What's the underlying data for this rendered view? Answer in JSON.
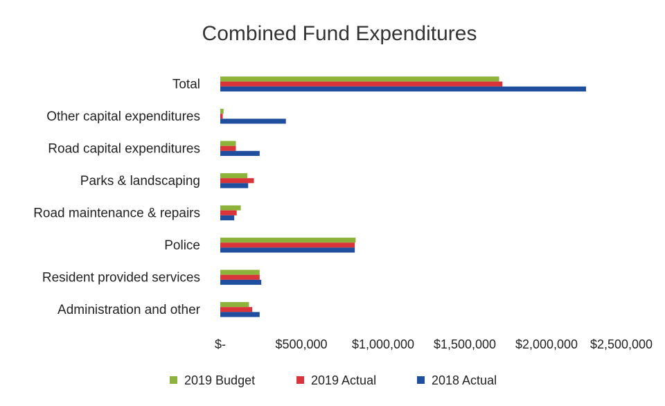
{
  "chart_data": {
    "type": "bar",
    "orientation": "horizontal",
    "title": "Combined Fund Expenditures",
    "xlabel": "",
    "ylabel": "",
    "categories": [
      "Total",
      "Other capital expenditures",
      "Road capital expenditures",
      "Parks & landscaping",
      "Road maintenance & repairs",
      "Police",
      "Resident provided services",
      "Administration and other"
    ],
    "series": [
      {
        "name": "2019 Budget",
        "color": "#8db33a",
        "values": [
          1700000,
          20000,
          95000,
          165000,
          125000,
          825000,
          240000,
          175000
        ]
      },
      {
        "name": "2019 Actual",
        "color": "#d9343a",
        "values": [
          1720000,
          15000,
          95000,
          205000,
          100000,
          820000,
          240000,
          195000
        ]
      },
      {
        "name": "2018 Actual",
        "color": "#1f4e9e",
        "values": [
          2230000,
          400000,
          240000,
          170000,
          85000,
          820000,
          250000,
          240000
        ]
      }
    ],
    "x_ticks": [
      "$-",
      "$500,000",
      "$1,000,000",
      "$1,500,000",
      "$2,000,000",
      "$2,500,000"
    ],
    "xlim": [
      0,
      2500000
    ],
    "grid": false,
    "legend_position": "bottom"
  }
}
